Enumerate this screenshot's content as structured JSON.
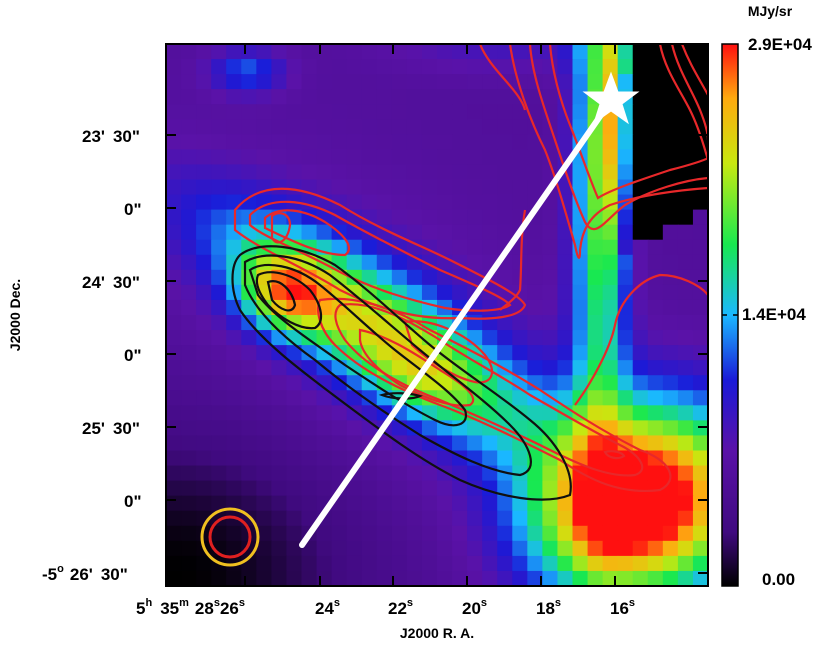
{
  "figure": {
    "y_axis_title": "J2000 Dec.",
    "x_axis_title": "J2000 R. A.",
    "ra_ticks": [
      {
        "h": "5",
        "m": "35",
        "s": "28",
        "extra": "26"
      },
      {
        "s": "24"
      },
      {
        "s": "22"
      },
      {
        "s": "20"
      },
      {
        "s": "18"
      },
      {
        "s": "16"
      }
    ],
    "dec_ticks": [
      {
        "arcmin": "23'",
        "arcsec": "30\""
      },
      {
        "arcsec": "0\""
      },
      {
        "arcmin": "24'",
        "arcsec": "30\""
      },
      {
        "arcsec": "0\""
      },
      {
        "arcmin": "25'",
        "arcsec": "30\""
      },
      {
        "arcsec": "0\""
      },
      {
        "deg": "-5",
        "arcmin": "26'",
        "arcsec": "30\""
      }
    ],
    "colorbar": {
      "unit": "MJy/sr",
      "max_label": "2.9E+04",
      "mid_label": "1.4E+04",
      "min_label": "0.00",
      "colormap": [
        "#000000",
        "#5a12a8",
        "#1a1ad8",
        "#1ab8ff",
        "#18e850",
        "#c8e810",
        "#ffaa10",
        "#ff1010"
      ]
    },
    "overlays": {
      "red_contour_color": "#e8282a",
      "black_contour_color": "#101010",
      "line_color": "#ffffff",
      "star_color": "#ffffff",
      "beam_outer_color": "#f0c020",
      "beam_inner_color": "#e02020"
    }
  }
}
